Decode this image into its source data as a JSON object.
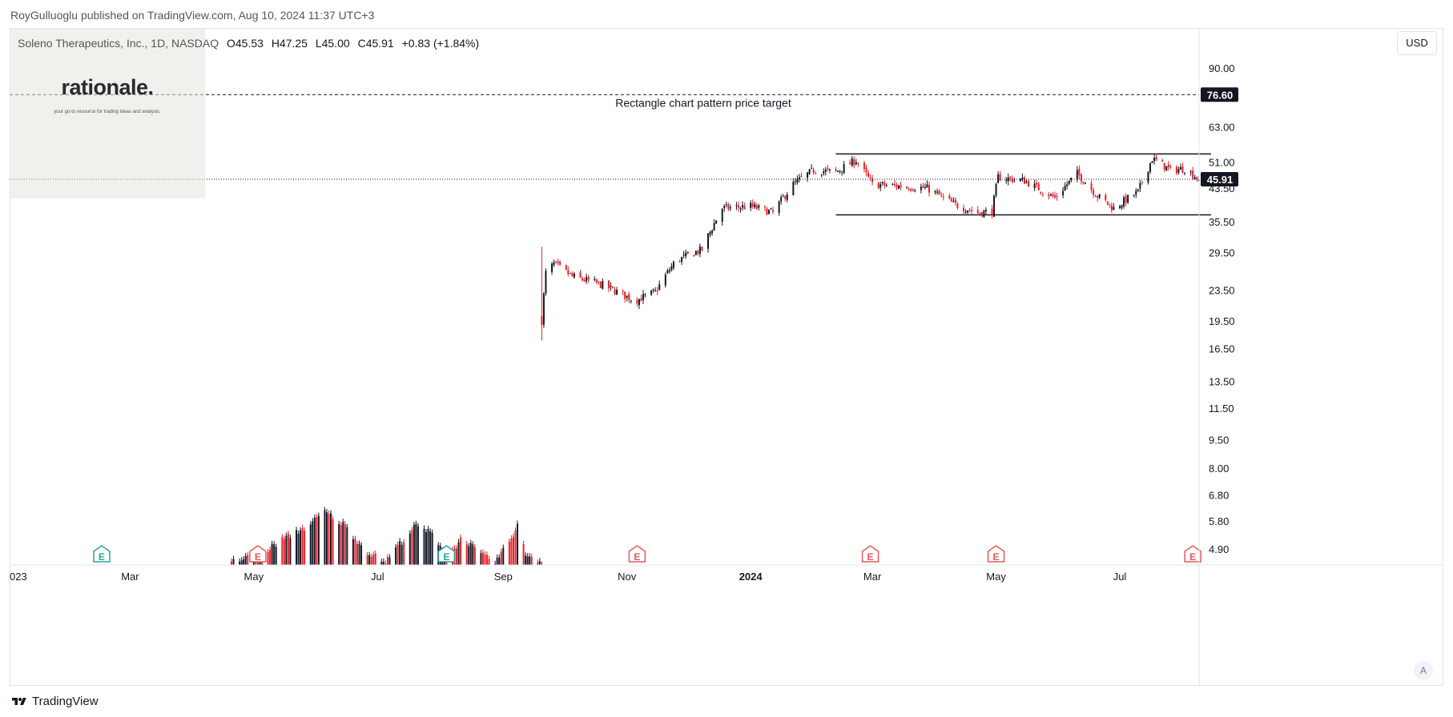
{
  "header": {
    "published": "RoyGulluoglu published on TradingView.com, Aug 10, 2024 11:37 UTC+3"
  },
  "legend": {
    "symbol": "Soleno Therapeutics, Inc., 1D, NASDAQ",
    "open": "O45.53",
    "high": "H47.25",
    "low": "L45.00",
    "close": "C45.91",
    "change": "+0.83 (+1.84%)"
  },
  "watermark": {
    "title": "rationale.",
    "subtitle": "your go-to resource for trading ideas and analysis."
  },
  "currency": "USD",
  "footer": {
    "brand": "TradingView"
  },
  "colors": {
    "up": "#131722",
    "down": "#e8202a",
    "accent_earnings_red": "#e35a5a",
    "accent_earnings_green": "#26a69a"
  },
  "chart_data": {
    "type": "candlestick",
    "scale": "log",
    "y_ticks": [
      "90.00",
      "63.00",
      "51.00",
      "43.50",
      "35.50",
      "29.50",
      "23.50",
      "19.50",
      "16.50",
      "13.50",
      "11.50",
      "9.50",
      "8.00",
      "6.80",
      "5.80",
      "4.90"
    ],
    "y_tick_values": [
      90,
      63,
      51,
      43.5,
      35.5,
      29.5,
      23.5,
      19.5,
      16.5,
      13.5,
      11.5,
      9.5,
      8,
      6.8,
      5.8,
      4.9
    ],
    "x_ticks": [
      {
        "label": "023",
        "date": "2023-01-01",
        "bold": false
      },
      {
        "label": "Mar",
        "date": "2023-03-01",
        "bold": false
      },
      {
        "label": "May",
        "date": "2023-05-01",
        "bold": false
      },
      {
        "label": "Jul",
        "date": "2023-07-01",
        "bold": false
      },
      {
        "label": "Sep",
        "date": "2023-09-01",
        "bold": false
      },
      {
        "label": "Nov",
        "date": "2023-11-01",
        "bold": false
      },
      {
        "label": "2024",
        "date": "2024-01-01",
        "bold": true
      },
      {
        "label": "Mar",
        "date": "2024-03-01",
        "bold": false
      },
      {
        "label": "May",
        "date": "2024-05-01",
        "bold": false
      },
      {
        "label": "Jul",
        "date": "2024-07-01",
        "bold": false
      }
    ],
    "last_price": "45.91",
    "last_price_value": 45.91,
    "target_price": "76.60",
    "target_price_value": 76.6,
    "annotation": "Rectangle chart pattern price target",
    "rectangle": {
      "start": "2024-02-12",
      "end": "2024-08-15",
      "top": 53.5,
      "bottom": 37.0
    },
    "earnings": [
      {
        "date": "2023-02-15",
        "label": "E",
        "color": "green"
      },
      {
        "date": "2023-05-03",
        "label": "E",
        "color": "red"
      },
      {
        "date": "2023-08-04",
        "label": "E",
        "color": "green"
      },
      {
        "date": "2023-11-06",
        "label": "E",
        "color": "red"
      },
      {
        "date": "2024-02-29",
        "label": "E",
        "color": "red"
      },
      {
        "date": "2024-05-01",
        "label": "E",
        "color": "red"
      },
      {
        "date": "2024-08-06",
        "label": "E",
        "color": "red"
      }
    ],
    "price_path_closes": [
      {
        "date": "2023-09-20",
        "close": 19.5
      },
      {
        "date": "2023-09-22",
        "close": 26.0
      },
      {
        "date": "2023-09-26",
        "close": 27.5
      },
      {
        "date": "2023-10-05",
        "close": 25.5
      },
      {
        "date": "2023-10-20",
        "close": 24.2
      },
      {
        "date": "2023-11-05",
        "close": 22.0
      },
      {
        "date": "2023-11-15",
        "close": 23.2
      },
      {
        "date": "2023-11-25",
        "close": 28.0
      },
      {
        "date": "2023-12-08",
        "close": 30.0
      },
      {
        "date": "2023-12-18",
        "close": 38.5
      },
      {
        "date": "2024-01-01",
        "close": 39.0
      },
      {
        "date": "2024-01-12",
        "close": 37.5
      },
      {
        "date": "2024-01-22",
        "close": 44.5
      },
      {
        "date": "2024-02-01",
        "close": 48.5
      },
      {
        "date": "2024-02-12",
        "close": 48.0
      },
      {
        "date": "2024-02-22",
        "close": 51.5
      },
      {
        "date": "2024-03-01",
        "close": 44.5
      },
      {
        "date": "2024-03-15",
        "close": 44.0
      },
      {
        "date": "2024-03-28",
        "close": 43.5
      },
      {
        "date": "2024-04-10",
        "close": 39.5
      },
      {
        "date": "2024-04-22",
        "close": 37.5
      },
      {
        "date": "2024-04-29",
        "close": 37.8
      },
      {
        "date": "2024-05-02",
        "close": 46.5
      },
      {
        "date": "2024-05-15",
        "close": 45.5
      },
      {
        "date": "2024-05-30",
        "close": 41.0
      },
      {
        "date": "2024-06-10",
        "close": 47.5
      },
      {
        "date": "2024-06-20",
        "close": 41.5
      },
      {
        "date": "2024-06-28",
        "close": 38.5
      },
      {
        "date": "2024-07-10",
        "close": 42.5
      },
      {
        "date": "2024-07-17",
        "close": 52.0
      },
      {
        "date": "2024-07-26",
        "close": 48.5
      },
      {
        "date": "2024-08-02",
        "close": 49.0
      },
      {
        "date": "2024-08-09",
        "close": 45.91
      }
    ],
    "volume_path": [
      {
        "date": "2023-04-20",
        "v": 0.05
      },
      {
        "date": "2023-05-05",
        "v": 0.2
      },
      {
        "date": "2023-05-15",
        "v": 0.45
      },
      {
        "date": "2023-05-28",
        "v": 0.7
      },
      {
        "date": "2023-06-05",
        "v": 0.95
      },
      {
        "date": "2023-06-15",
        "v": 0.7
      },
      {
        "date": "2023-06-25",
        "v": 0.25
      },
      {
        "date": "2023-07-05",
        "v": 0.05
      },
      {
        "date": "2023-07-10",
        "v": 0.3
      },
      {
        "date": "2023-07-20",
        "v": 0.7
      },
      {
        "date": "2023-07-28",
        "v": 0.55
      },
      {
        "date": "2023-08-05",
        "v": 0.15
      },
      {
        "date": "2023-08-12",
        "v": 0.5
      },
      {
        "date": "2023-08-20",
        "v": 0.2
      },
      {
        "date": "2023-08-28",
        "v": 0.05
      },
      {
        "date": "2023-09-03",
        "v": 0.35
      },
      {
        "date": "2023-09-08",
        "v": 0.7
      },
      {
        "date": "2023-09-12",
        "v": 0.2
      },
      {
        "date": "2023-09-20",
        "v": 0.05
      }
    ]
  }
}
